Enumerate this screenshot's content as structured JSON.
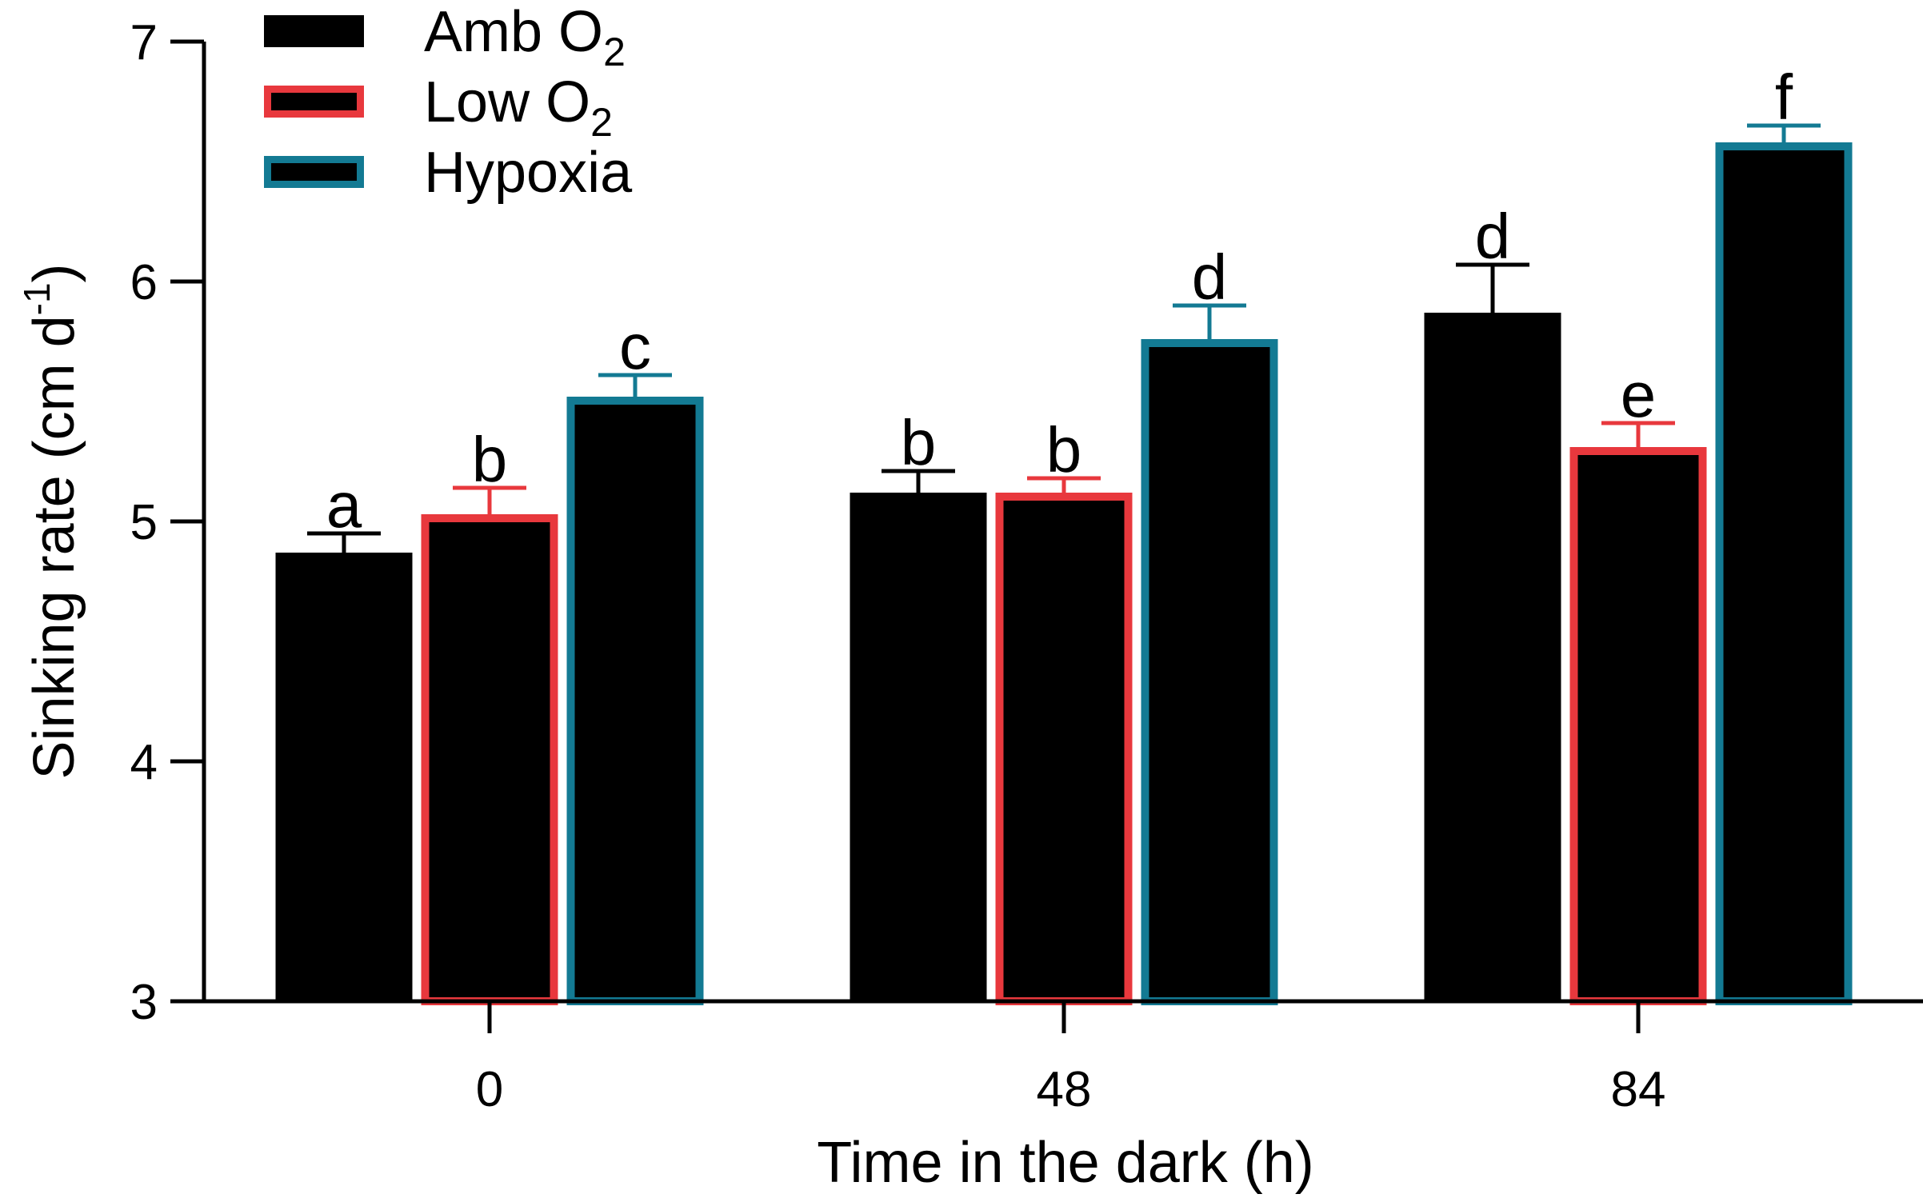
{
  "chart_data": {
    "type": "bar",
    "title": "",
    "xlabel": "Time in the dark (h)",
    "ylabel": "Sinking rate (cm d-1)",
    "ylabel_parts": {
      "base": "Sinking rate (cm d",
      "sup": "-1",
      "close": ")"
    },
    "ylim": [
      3,
      7
    ],
    "yticks": [
      "3",
      "4",
      "5",
      "6",
      "7"
    ],
    "categories": [
      "0",
      "48",
      "84"
    ],
    "legend_position": "top-left",
    "series": [
      {
        "name": "Amb O2",
        "name_parts": {
          "base": "Amb O",
          "sub": "2"
        },
        "edge_color": "#000000",
        "fill_color": "#000000",
        "values": [
          4.87,
          5.12,
          5.87
        ],
        "errors": [
          0.08,
          0.09,
          0.2
        ],
        "letters": [
          "a",
          "b",
          "d"
        ]
      },
      {
        "name": "Low O2",
        "name_parts": {
          "base": "Low O",
          "sub": "2"
        },
        "edge_color": "#e8383d",
        "fill_color": "#000000",
        "values": [
          5.03,
          5.12,
          5.31
        ],
        "errors": [
          0.11,
          0.06,
          0.1
        ],
        "letters": [
          "b",
          "b",
          "e"
        ]
      },
      {
        "name": "Hypoxia",
        "name_parts": {
          "base": "Hypoxia",
          "sub": ""
        },
        "edge_color": "#137a93",
        "fill_color": "#000000",
        "values": [
          5.52,
          5.76,
          6.58
        ],
        "errors": [
          0.09,
          0.14,
          0.07
        ],
        "letters": [
          "c",
          "d",
          "f"
        ]
      }
    ]
  }
}
